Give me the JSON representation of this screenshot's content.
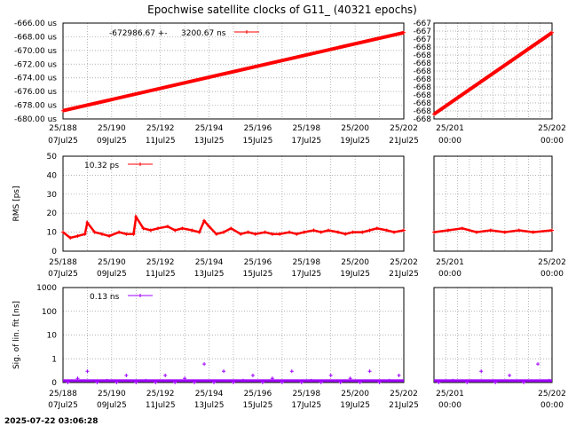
{
  "title": "Epochwise satellite clocks of G11_ (40321 epochs)",
  "timestamp": "2025-07-22 03:06:28",
  "colors": {
    "clock": "#ff0000",
    "rms": "#ff0000",
    "sig": "#a000ff"
  },
  "x_ticks_main": [
    [
      "25/188",
      "07Jul25"
    ],
    [
      "25/190",
      "09Jul25"
    ],
    [
      "25/192",
      "11Jul25"
    ],
    [
      "25/194",
      "13Jul25"
    ],
    [
      "25/196",
      "15Jul25"
    ],
    [
      "25/198",
      "17Jul25"
    ],
    [
      "25/200",
      "19Jul25"
    ],
    [
      "25/202",
      "21Jul25"
    ]
  ],
  "x_ticks_zoom": [
    [
      "25/201",
      "00:00"
    ],
    [
      "25/202",
      "00:00"
    ]
  ],
  "chart_data": [
    {
      "type": "line",
      "panel": "clock",
      "legend": [
        "-672986.67 +-",
        "3200.67 ns"
      ],
      "ylabel": "",
      "ylim": [
        -680,
        -666
      ],
      "yticks": [
        "-666.00 us",
        "-668.00 us",
        "-670.00 us",
        "-672.00 us",
        "-674.00 us",
        "-676.00 us",
        "-678.00 us",
        "-680.00 us"
      ],
      "xlim": [
        188,
        202
      ],
      "x": [
        188.0,
        202.0
      ],
      "y": [
        -678.8,
        -667.4
      ]
    },
    {
      "type": "line",
      "panel": "clock-zoom",
      "ylim": [
        -668,
        -667
      ],
      "yticks": [
        "-667",
        "-667",
        "-667",
        "-668",
        "-668",
        "-668",
        "-668",
        "-668",
        "-668",
        "-668",
        "-668",
        "-668",
        "-668"
      ],
      "xlim": [
        200.75,
        202.0
      ],
      "x": [
        200.75,
        202.0
      ],
      "y": [
        -667.95,
        -667.1
      ]
    },
    {
      "type": "line",
      "panel": "rms",
      "legend": [
        "10.32 ps"
      ],
      "ylabel": "RMS [ps]",
      "ylim": [
        0,
        50
      ],
      "yticks": [
        "50",
        "40",
        "30",
        "20",
        "10",
        "0"
      ],
      "xlim": [
        188,
        202
      ],
      "x": [
        188.0,
        188.3,
        188.6,
        188.9,
        189.0,
        189.3,
        189.6,
        189.9,
        190.3,
        190.6,
        190.9,
        191.0,
        191.3,
        191.6,
        191.9,
        192.3,
        192.6,
        192.9,
        193.3,
        193.6,
        193.8,
        194.0,
        194.3,
        194.6,
        194.9,
        195.3,
        195.6,
        195.9,
        196.3,
        196.6,
        196.9,
        197.3,
        197.6,
        197.9,
        198.3,
        198.6,
        198.9,
        199.3,
        199.6,
        199.9,
        200.3,
        200.6,
        200.9,
        201.3,
        201.6,
        202.0
      ],
      "y": [
        10,
        7,
        8,
        9,
        15,
        10,
        9,
        8,
        10,
        9,
        9,
        18,
        12,
        11,
        12,
        13,
        11,
        12,
        11,
        10,
        16,
        13,
        9,
        10,
        12,
        9,
        10,
        9,
        10,
        9,
        9,
        10,
        9,
        10,
        11,
        10,
        11,
        10,
        9,
        10,
        10,
        11,
        12,
        11,
        10,
        11
      ]
    },
    {
      "type": "line",
      "panel": "rms-zoom",
      "ylim": [
        0,
        50
      ],
      "xlim": [
        200.75,
        202.0
      ],
      "x": [
        200.75,
        200.9,
        201.05,
        201.2,
        201.35,
        201.5,
        201.65,
        201.8,
        202.0
      ],
      "y": [
        10,
        11,
        12,
        10,
        11,
        10,
        11,
        10,
        11
      ]
    },
    {
      "type": "scatter",
      "panel": "sig",
      "legend": [
        "0.13 ns"
      ],
      "ylabel": "Sig. of lin. fit [ns]",
      "scale": "log",
      "ylim": [
        0,
        1000
      ],
      "yticks": [
        "1000",
        "100",
        "10",
        "1",
        "0"
      ],
      "xlim": [
        188,
        202
      ],
      "x": [
        188.2,
        188.6,
        189.0,
        189.4,
        189.8,
        190.2,
        190.6,
        191.0,
        191.4,
        191.8,
        192.2,
        192.6,
        193.0,
        193.4,
        193.8,
        194.2,
        194.6,
        195.0,
        195.4,
        195.8,
        196.2,
        196.6,
        197.0,
        197.4,
        197.8,
        198.2,
        198.6,
        199.0,
        199.4,
        199.8,
        200.2,
        200.6,
        201.0,
        201.4,
        201.8
      ],
      "y": [
        0.1,
        0.15,
        0.3,
        0.1,
        0.12,
        0.1,
        0.2,
        0.1,
        0.12,
        0.1,
        0.2,
        0.1,
        0.15,
        0.1,
        0.6,
        0.1,
        0.3,
        0.1,
        0.12,
        0.2,
        0.1,
        0.15,
        0.1,
        0.3,
        0.1,
        0.12,
        0.1,
        0.2,
        0.1,
        0.15,
        0.1,
        0.3,
        0.1,
        0.12,
        0.2
      ]
    },
    {
      "type": "scatter",
      "panel": "sig-zoom",
      "scale": "log",
      "ylim": [
        0,
        1000
      ],
      "xlim": [
        200.75,
        202.0
      ],
      "x": [
        200.8,
        200.95,
        201.1,
        201.25,
        201.4,
        201.55,
        201.7,
        201.85,
        201.97
      ],
      "y": [
        0.1,
        0.12,
        0.1,
        0.3,
        0.1,
        0.2,
        0.1,
        0.6,
        0.12
      ]
    }
  ]
}
